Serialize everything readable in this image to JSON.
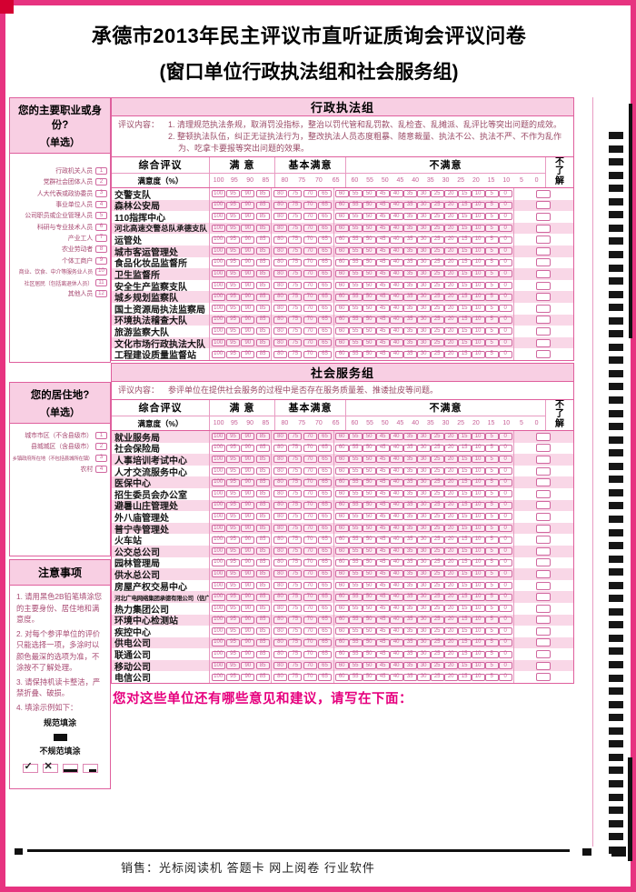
{
  "page": {
    "title_line1": "承德市2013年民主评议市直听证质询会评议问卷",
    "title_line2": "(窗口单位行政执法组和社会服务组)",
    "footer": "销售：光标阅读机 答题卡 网上阅卷 行业软件"
  },
  "colors": {
    "accent_magenta": "#e6007e",
    "frame_magenta": "#e73380",
    "header_pink": "#f8cfe3",
    "row_pink": "#f9d7e7",
    "bubble_pink": "#cf679e",
    "mark_black": "#161616"
  },
  "sidebar": {
    "occupation": {
      "title": "您的主要职业或身份?",
      "subtitle": "（单选）",
      "items": [
        {
          "label": "行政机关人员",
          "num": "1"
        },
        {
          "label": "党群社会团体人员",
          "num": "2"
        },
        {
          "label": "人大代表或政协委员",
          "num": "3"
        },
        {
          "label": "事业单位人员",
          "num": "4"
        },
        {
          "label": "公司职员或企业管理人员",
          "num": "5"
        },
        {
          "label": "科研与专业技术人员",
          "num": "6"
        },
        {
          "label": "产业工人",
          "num": "7"
        },
        {
          "label": "农业劳动者",
          "num": "8"
        },
        {
          "label": "个体工商户",
          "num": "9"
        },
        {
          "label": "商业、饮食、中介等服务业人员",
          "num": "10"
        },
        {
          "label": "社区居民（包括离退休人员）",
          "num": "11"
        },
        {
          "label": "其他人员",
          "num": "12"
        }
      ]
    },
    "residence": {
      "title": "您的居住地?",
      "subtitle": "（单选）",
      "items": [
        {
          "label": "城市市区（不含县级市）",
          "num": "1"
        },
        {
          "label": "县城城区（含县级市）",
          "num": "2"
        },
        {
          "label": "乡镇政府所在地（不包括县城所在镇）",
          "num": "3"
        },
        {
          "label": "农村",
          "num": "4"
        }
      ]
    },
    "notes": {
      "title": "注意事项",
      "lines": [
        "1. 请用黑色2B铅笔填涂您的主要身份、居住地和满意度。",
        "2. 对每个参评单位的评价只能选择一项，多涂时以颜色最深的选项为准，不涂按不了解处理。",
        "3. 请保持机读卡整洁，严禁折叠、破损。",
        "4. 填涂示例如下："
      ],
      "good_label": "规范填涂",
      "bad_label": "不规范填涂"
    }
  },
  "table_header": {
    "col_overall": "综合评议",
    "col_satisfied": "满  意",
    "col_basic": "基本满意",
    "col_unsat": "不满意",
    "col_unknown": "不了解",
    "row_label": "满意度（%）",
    "satisfied": [
      "100",
      "95",
      "90",
      "85"
    ],
    "basic": [
      "80",
      "75",
      "70",
      "65"
    ],
    "unsatisfied": [
      "60",
      "55",
      "50",
      "45",
      "40",
      "35",
      "30",
      "25",
      "20",
      "15",
      "10",
      "5",
      "0"
    ]
  },
  "section1": {
    "title": "行政执法组",
    "desc_prefix": "评议内容：",
    "desc_lines": [
      "1. 清理规范执法条规，取消罚没指标，整治以罚代管和乱罚款、乱检查、乱摊派、乱评比等突出问题的成效。",
      "2. 整顿执法队伍，纠正无证执法行为，整改执法人员态度粗暴、随意裁量、执法不公、执法不严、不作为乱作为、吃拿卡要报等突出问题的效果。"
    ],
    "orgs": [
      "交警支队",
      "森林公安局",
      "110指挥中心",
      "河北高速交警总队承德支队",
      "运管处",
      "城市客运管理处",
      "食品化妆品监督所",
      "卫生监督所",
      "安全生产监察支队",
      "城乡规划监察队",
      "国土资源局执法监察局",
      "环境执法稽查大队",
      "旅游监察大队",
      "文化市场行政执法大队",
      "工程建设质量监督站"
    ]
  },
  "section2": {
    "title": "社会服务组",
    "desc_prefix": "评议内容：",
    "desc_lines": [
      "参评单位在提供社会服务的过程中是否存在服务质量差、推诿扯皮等问题。"
    ],
    "orgs": [
      "就业服务局",
      "社会保险局",
      "人事培训考试中心",
      "人才交流服务中心",
      "医保中心",
      "招生委员会办公室",
      "避暑山庄管理处",
      "外八庙管理处",
      "普宁寺管理处",
      "火车站",
      "公交总公司",
      "园林管理局",
      "供水总公司",
      "房屋产权交易中心",
      "河北广电网络集团承德有限公司（信广联）",
      "热力集团公司",
      "环境中心检测站",
      "疾控中心",
      "供电公司",
      "联通公司",
      "移动公司",
      "电信公司"
    ],
    "suggestion": "您对这些单位还有哪些意见和建议，请写在下面："
  }
}
